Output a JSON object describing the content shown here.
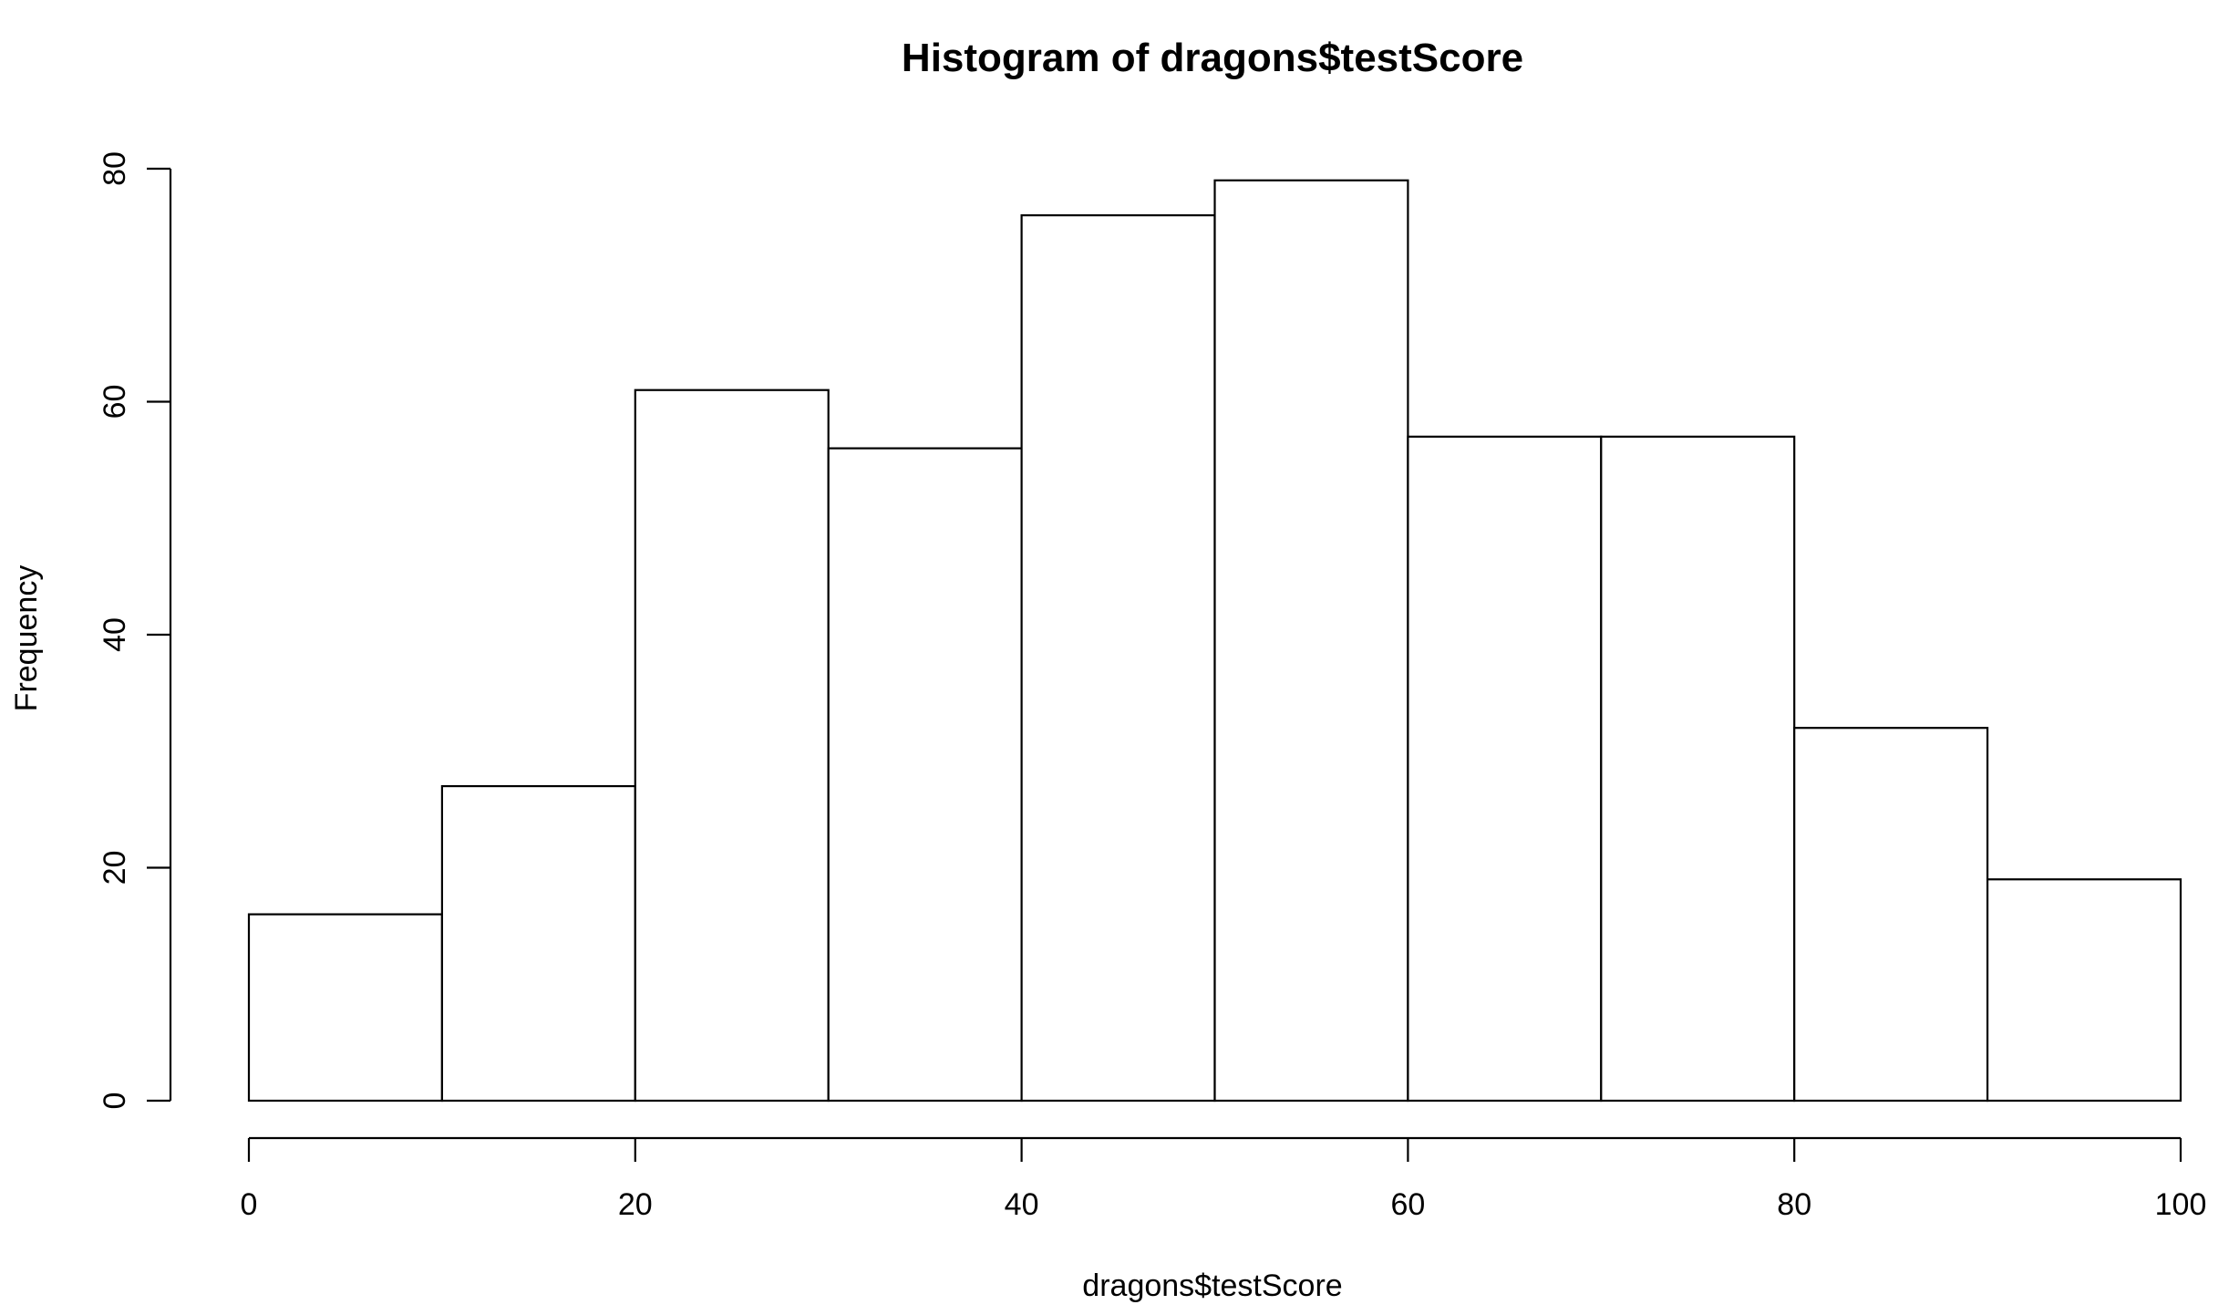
{
  "chart_data": {
    "type": "bar",
    "subtype": "histogram",
    "title": "Histogram of dragons$testScore",
    "xlabel": "dragons$testScore",
    "ylabel": "Frequency",
    "bin_edges": [
      0,
      10,
      20,
      30,
      40,
      50,
      60,
      70,
      80,
      90,
      100
    ],
    "values": [
      16,
      27,
      61,
      56,
      76,
      79,
      57,
      57,
      32,
      19
    ],
    "xlim": [
      0,
      100
    ],
    "ylim": [
      0,
      80
    ],
    "x_ticks": [
      0,
      20,
      40,
      60,
      80,
      100
    ],
    "x_tick_labels": [
      "0",
      "20",
      "40",
      "60",
      "80",
      "100"
    ],
    "y_ticks": [
      0,
      20,
      40,
      60,
      80
    ],
    "y_tick_labels": [
      "0",
      "20",
      "40",
      "60",
      "80"
    ],
    "grid": false,
    "bar_fill": "#ffffff",
    "bar_stroke": "#000000"
  }
}
